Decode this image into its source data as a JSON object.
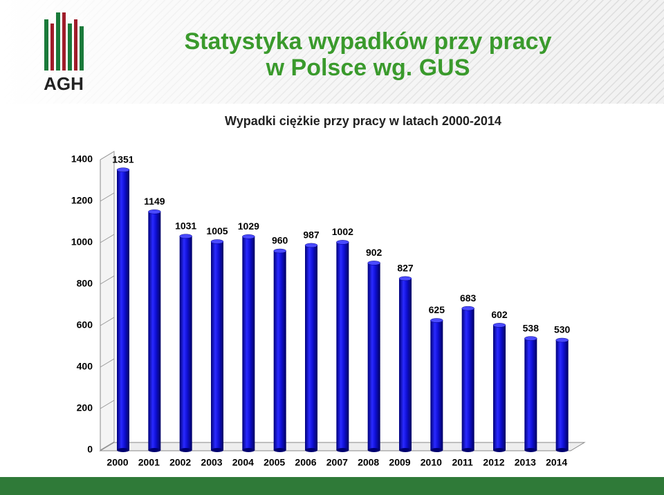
{
  "header": {
    "logo_text": "AGH",
    "title_line1": "Statystyka wypadków przy pracy",
    "title_line2": "w Polsce wg. GUS"
  },
  "chart_data": {
    "type": "bar",
    "title": "Wypadki ciężkie przy pracy w latach  2000-2014",
    "categories": [
      "2000",
      "2001",
      "2002",
      "2003",
      "2004",
      "2005",
      "2006",
      "2007",
      "2008",
      "2009",
      "2010",
      "2011",
      "2012",
      "2013",
      "2014"
    ],
    "values": [
      1351,
      1149,
      1031,
      1005,
      1029,
      960,
      987,
      1002,
      902,
      827,
      625,
      683,
      602,
      538,
      530
    ],
    "color": "#1010d8",
    "ylim": [
      0,
      1400
    ],
    "yticks": [
      0,
      200,
      400,
      600,
      800,
      1000,
      1200,
      1400
    ],
    "grid": false
  }
}
